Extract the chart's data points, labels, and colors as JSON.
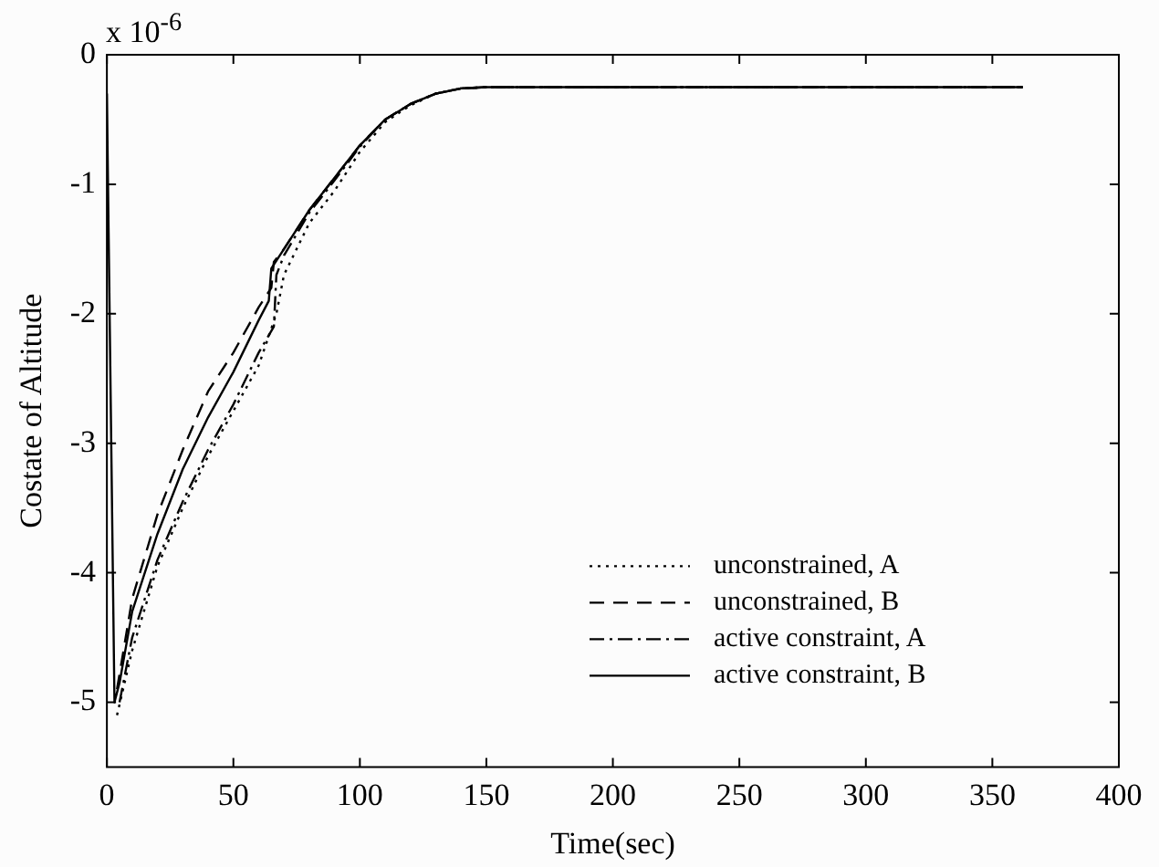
{
  "chart_data": {
    "type": "line",
    "xlabel": "Time(sec)",
    "ylabel": "Costate of Altitude",
    "annotations": [
      "x 10$^{-6}$"
    ],
    "xlim": [
      0,
      400
    ],
    "xticks": [
      0,
      50,
      100,
      150,
      200,
      250,
      300,
      350,
      400
    ],
    "ylim": [
      -5.5,
      0
    ],
    "yticks": [
      -5,
      -4,
      -3,
      -2,
      -1,
      0
    ],
    "grid": false,
    "legend": "bottom right",
    "marker": "none",
    "series": [
      {
        "name": "unconstrained, A",
        "color": "#000000",
        "line_style": "dotted",
        "x": [
          4,
          10,
          20,
          30,
          40,
          50,
          60,
          67,
          70,
          80,
          90,
          100,
          110,
          120,
          130,
          140,
          150,
          200,
          362
        ],
        "values": [
          -5.1,
          -4.6,
          -3.95,
          -3.5,
          -3.1,
          -2.75,
          -2.4,
          -2.0,
          -1.7,
          -1.3,
          -1.05,
          -0.75,
          -0.52,
          -0.39,
          -0.3,
          -0.26,
          -0.25,
          -0.25,
          -0.25
        ]
      },
      {
        "name": "unconstrained, B",
        "color": "#000000",
        "line_style": "dashed",
        "x": [
          4,
          10,
          20,
          30,
          40,
          50,
          60,
          65,
          66,
          70,
          80,
          90,
          100,
          110,
          120,
          130,
          140,
          150,
          200,
          362
        ],
        "values": [
          -4.9,
          -4.2,
          -3.55,
          -3.05,
          -2.6,
          -2.3,
          -1.95,
          -1.8,
          -1.6,
          -1.5,
          -1.2,
          -0.95,
          -0.7,
          -0.5,
          -0.38,
          -0.3,
          -0.26,
          -0.25,
          -0.25,
          -0.25
        ]
      },
      {
        "name": "active constraint, A",
        "color": "#000000",
        "line_style": "dashdot",
        "x": [
          5,
          10,
          20,
          30,
          40,
          50,
          60,
          66,
          67,
          70,
          80,
          90,
          100,
          110,
          120,
          130,
          140,
          150,
          200,
          362
        ],
        "values": [
          -5.0,
          -4.5,
          -3.9,
          -3.45,
          -3.05,
          -2.7,
          -2.3,
          -2.1,
          -1.7,
          -1.55,
          -1.22,
          -0.97,
          -0.71,
          -0.5,
          -0.38,
          -0.3,
          -0.26,
          -0.25,
          -0.25,
          -0.25
        ]
      },
      {
        "name": "active constraint, B",
        "color": "#000000",
        "line_style": "solid",
        "x": [
          0,
          3,
          5,
          10,
          20,
          30,
          40,
          50,
          60,
          64,
          65,
          70,
          80,
          90,
          100,
          110,
          120,
          130,
          140,
          150,
          200,
          362
        ],
        "values": [
          -0.3,
          -5.0,
          -4.85,
          -4.3,
          -3.7,
          -3.2,
          -2.8,
          -2.45,
          -2.05,
          -1.9,
          -1.65,
          -1.5,
          -1.2,
          -0.95,
          -0.7,
          -0.5,
          -0.38,
          -0.3,
          -0.26,
          -0.25,
          -0.25,
          -0.25
        ]
      }
    ]
  }
}
